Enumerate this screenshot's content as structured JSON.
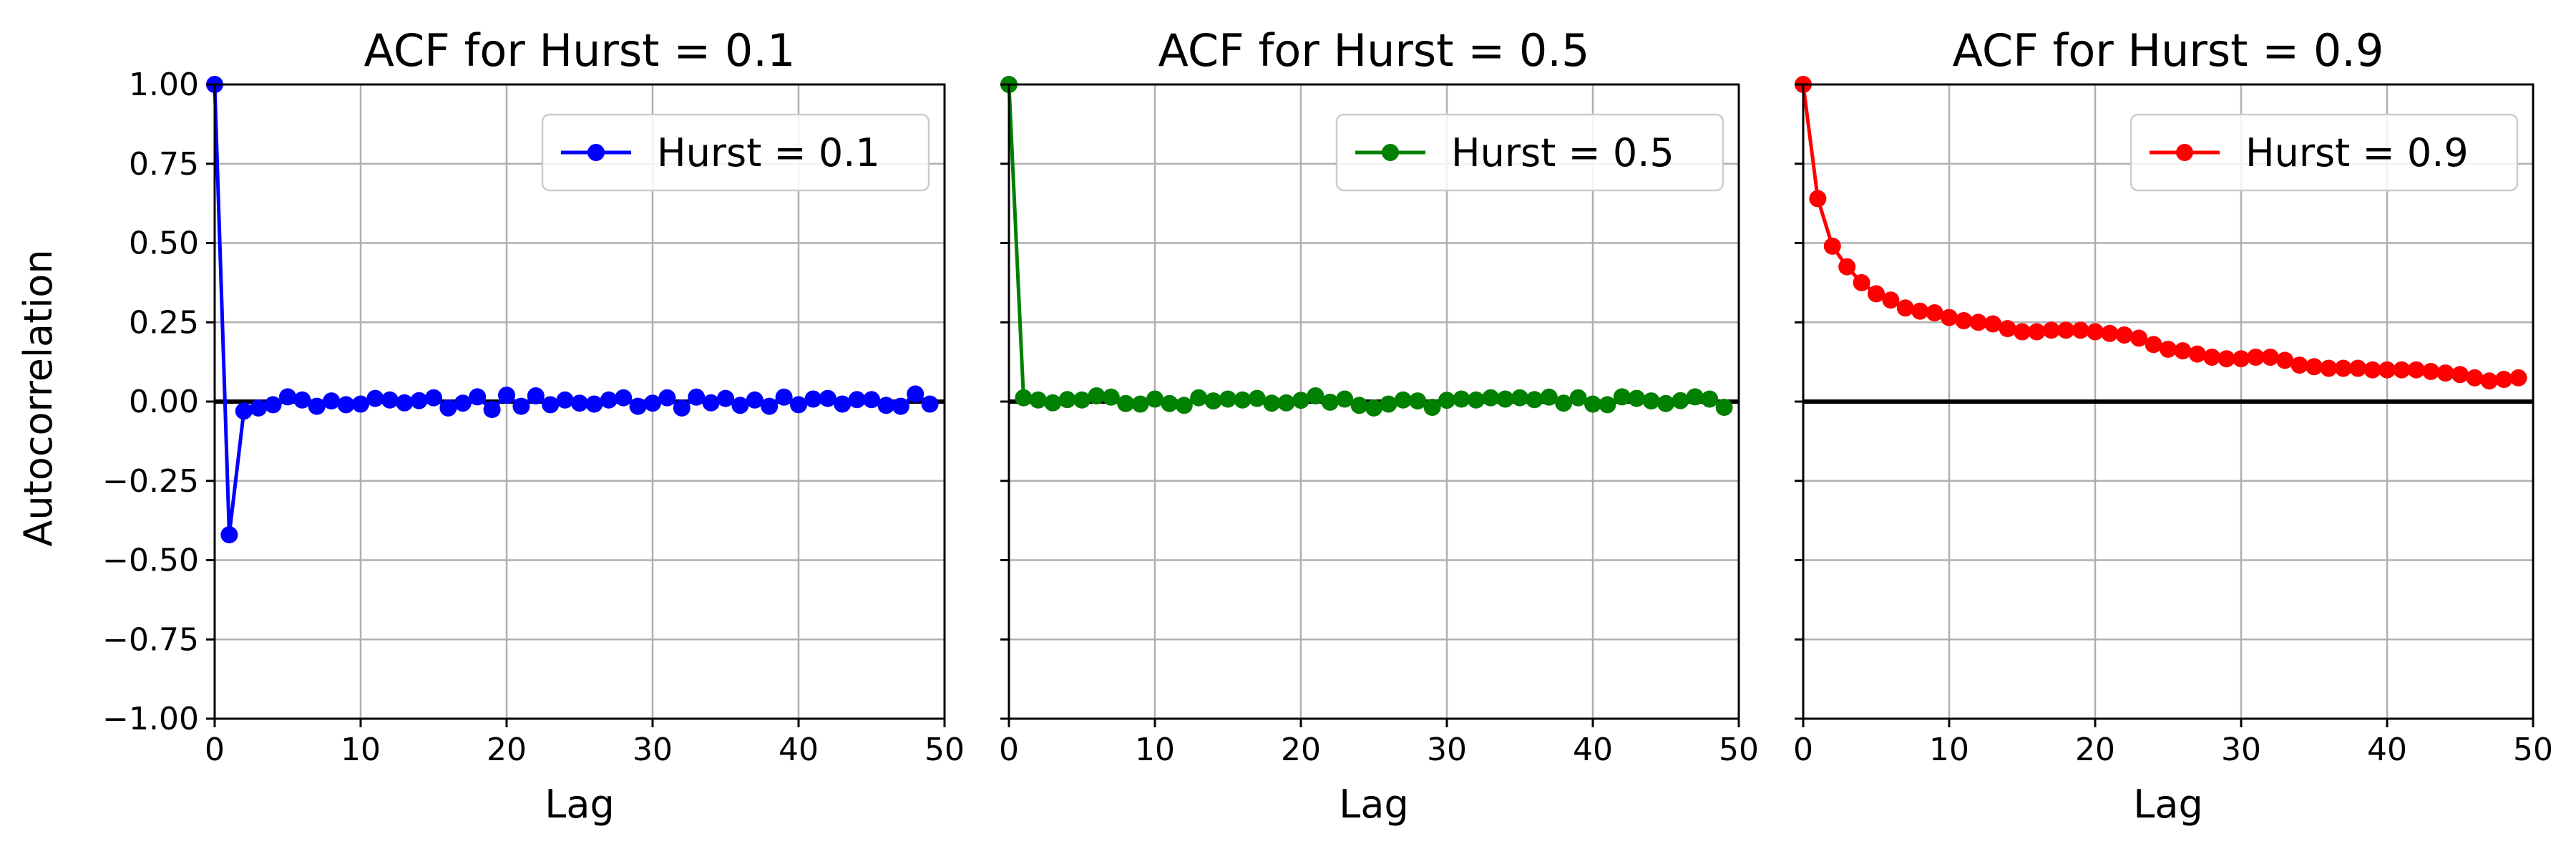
{
  "figure": {
    "ylabel": "Autocorrelation",
    "colors": {
      "grid": "#b0b0b0",
      "zero_line": "#000000",
      "axes": "#000000"
    }
  },
  "chart_data": [
    {
      "type": "line",
      "title": "ACF for Hurst = 0.1",
      "xlabel": "Lag",
      "ylabel": "Autocorrelation",
      "xlim": [
        0,
        50
      ],
      "ylim": [
        -1.0,
        1.0
      ],
      "xticks": [
        0,
        10,
        20,
        30,
        40,
        50
      ],
      "yticks": [
        -1.0,
        -0.75,
        -0.5,
        -0.25,
        0.0,
        0.25,
        0.5,
        0.75,
        1.0
      ],
      "ytick_labels": [
        "−1.00",
        "−0.75",
        "−0.50",
        "−0.25",
        "0.00",
        "0.25",
        "0.50",
        "0.75",
        "1.00"
      ],
      "grid": true,
      "legend_position": "top-right",
      "series": [
        {
          "name": "Hurst = 0.1",
          "color": "#0000ff",
          "marker": "circle",
          "x": [
            0,
            1,
            2,
            3,
            4,
            5,
            6,
            7,
            8,
            9,
            10,
            11,
            12,
            13,
            14,
            15,
            16,
            17,
            18,
            19,
            20,
            21,
            22,
            23,
            24,
            25,
            26,
            27,
            28,
            29,
            30,
            31,
            32,
            33,
            34,
            35,
            36,
            37,
            38,
            39,
            40,
            41,
            42,
            43,
            44,
            45,
            46,
            47,
            48,
            49
          ],
          "y": [
            1.0,
            -0.42,
            -0.03,
            -0.02,
            -0.01,
            0.015,
            0.005,
            -0.015,
            0.002,
            -0.01,
            -0.008,
            0.01,
            0.005,
            -0.004,
            0.003,
            0.012,
            -0.02,
            -0.005,
            0.015,
            -0.025,
            0.02,
            -0.015,
            0.018,
            -0.01,
            0.005,
            -0.005,
            -0.008,
            0.005,
            0.012,
            -0.015,
            -0.005,
            0.012,
            -0.02,
            0.014,
            -0.004,
            0.01,
            -0.012,
            0.005,
            -0.015,
            0.014,
            -0.01,
            0.008,
            0.01,
            -0.008,
            0.006,
            0.006,
            -0.012,
            -0.015,
            0.024,
            -0.008
          ]
        }
      ],
      "zero_line": true
    },
    {
      "type": "line",
      "title": "ACF for Hurst = 0.5",
      "xlabel": "Lag",
      "ylabel": "",
      "xlim": [
        0,
        50
      ],
      "ylim": [
        -1.0,
        1.0
      ],
      "xticks": [
        0,
        10,
        20,
        30,
        40,
        50
      ],
      "yticks": [
        -1.0,
        -0.75,
        -0.5,
        -0.25,
        0.0,
        0.25,
        0.5,
        0.75,
        1.0
      ],
      "ytick_labels": [],
      "grid": true,
      "legend_position": "top-right",
      "series": [
        {
          "name": "Hurst = 0.5",
          "color": "#008000",
          "marker": "circle",
          "x": [
            0,
            1,
            2,
            3,
            4,
            5,
            6,
            7,
            8,
            9,
            10,
            11,
            12,
            13,
            14,
            15,
            16,
            17,
            18,
            19,
            20,
            21,
            22,
            23,
            24,
            25,
            26,
            27,
            28,
            29,
            30,
            31,
            32,
            33,
            34,
            35,
            36,
            37,
            38,
            39,
            40,
            41,
            42,
            43,
            44,
            45,
            46,
            47,
            48,
            49
          ],
          "y": [
            1.0,
            0.012,
            0.005,
            -0.004,
            0.006,
            0.005,
            0.018,
            0.014,
            -0.006,
            -0.008,
            0.008,
            -0.006,
            -0.012,
            0.012,
            0.002,
            0.008,
            0.005,
            0.01,
            -0.005,
            -0.004,
            0.004,
            0.018,
            -0.002,
            0.008,
            -0.012,
            -0.02,
            -0.008,
            0.005,
            0.002,
            -0.018,
            0.004,
            0.008,
            0.005,
            0.012,
            0.008,
            0.012,
            0.006,
            0.014,
            -0.005,
            0.012,
            -0.008,
            -0.01,
            0.015,
            0.01,
            0.002,
            -0.006,
            0.003,
            0.015,
            0.008,
            -0.018
          ]
        }
      ],
      "zero_line": true
    },
    {
      "type": "line",
      "title": "ACF for Hurst = 0.9",
      "xlabel": "Lag",
      "ylabel": "",
      "xlim": [
        0,
        50
      ],
      "ylim": [
        -1.0,
        1.0
      ],
      "xticks": [
        0,
        10,
        20,
        30,
        40,
        50
      ],
      "yticks": [
        -1.0,
        -0.75,
        -0.5,
        -0.25,
        0.0,
        0.25,
        0.5,
        0.75,
        1.0
      ],
      "ytick_labels": [],
      "grid": true,
      "legend_position": "top-right",
      "series": [
        {
          "name": "Hurst = 0.9",
          "color": "#ff0000",
          "marker": "circle",
          "x": [
            0,
            1,
            2,
            3,
            4,
            5,
            6,
            7,
            8,
            9,
            10,
            11,
            12,
            13,
            14,
            15,
            16,
            17,
            18,
            19,
            20,
            21,
            22,
            23,
            24,
            25,
            26,
            27,
            28,
            29,
            30,
            31,
            32,
            33,
            34,
            35,
            36,
            37,
            38,
            39,
            40,
            41,
            42,
            43,
            44,
            45,
            46,
            47,
            48,
            49
          ],
          "y": [
            1.0,
            0.64,
            0.49,
            0.425,
            0.375,
            0.34,
            0.32,
            0.295,
            0.285,
            0.28,
            0.265,
            0.255,
            0.25,
            0.245,
            0.23,
            0.22,
            0.22,
            0.225,
            0.225,
            0.225,
            0.22,
            0.215,
            0.21,
            0.2,
            0.18,
            0.165,
            0.16,
            0.15,
            0.14,
            0.135,
            0.135,
            0.14,
            0.14,
            0.13,
            0.115,
            0.11,
            0.105,
            0.105,
            0.105,
            0.1,
            0.1,
            0.1,
            0.1,
            0.095,
            0.09,
            0.085,
            0.075,
            0.065,
            0.07,
            0.075
          ]
        }
      ],
      "zero_line": true
    }
  ]
}
